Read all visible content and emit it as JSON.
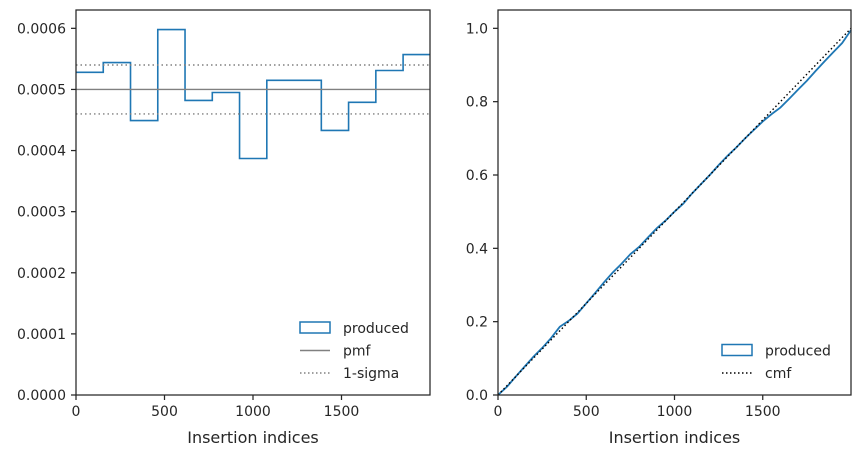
{
  "chart_data": [
    {
      "type": "histogram-step",
      "title": "",
      "xlabel": "Insertion indices",
      "ylabel": "",
      "xlim": [
        0,
        2000
      ],
      "ylim": [
        0,
        0.00063
      ],
      "xticks": [
        0,
        500,
        1000,
        1500
      ],
      "xtick_labels": [
        "0",
        "500",
        "1000",
        "1500"
      ],
      "yticks": [
        0,
        0.0001,
        0.0002,
        0.0003,
        0.0004,
        0.0005,
        0.0006
      ],
      "ytick_labels": [
        "0.0000",
        "0.0001",
        "0.0002",
        "0.0003",
        "0.0004",
        "0.0005",
        "0.0006"
      ],
      "grid": false,
      "legend_position": "lower right",
      "bin_edges": [
        0,
        154,
        308,
        462,
        616,
        770,
        924,
        1078,
        1232,
        1386,
        1540,
        1694,
        1848,
        2000
      ],
      "series": [
        {
          "name": "produced",
          "style": "step",
          "color": "#1f77b4",
          "values": [
            0.000528,
            0.000544,
            0.000449,
            0.000598,
            0.000482,
            0.000495,
            0.000387,
            0.000515,
            0.000515,
            0.000433,
            0.000479,
            0.000531,
            0.000557
          ]
        },
        {
          "name": "pmf",
          "style": "solid-hline",
          "color": "#808080",
          "value": 0.0005
        },
        {
          "name": "1-sigma",
          "style": "dotted-hline",
          "color": "#808080",
          "values": [
            0.00046,
            0.00054
          ]
        }
      ]
    },
    {
      "type": "line",
      "title": "",
      "xlabel": "Insertion indices",
      "ylabel": "",
      "xlim": [
        0,
        2000
      ],
      "ylim": [
        0,
        1.05
      ],
      "xticks": [
        0,
        500,
        1000,
        1500
      ],
      "xtick_labels": [
        "0",
        "500",
        "1000",
        "1500"
      ],
      "yticks": [
        0,
        0.2,
        0.4,
        0.6,
        0.8,
        1.0
      ],
      "ytick_labels": [
        "0.0",
        "0.2",
        "0.4",
        "0.6",
        "0.8",
        "1.0"
      ],
      "grid": false,
      "legend_position": "lower right",
      "series": [
        {
          "name": "produced",
          "color": "#1f77b4",
          "x": [
            0,
            50,
            100,
            150,
            200,
            250,
            300,
            350,
            400,
            450,
            500,
            550,
            600,
            650,
            700,
            750,
            800,
            850,
            900,
            950,
            1000,
            1050,
            1100,
            1150,
            1200,
            1250,
            1300,
            1350,
            1400,
            1450,
            1500,
            1550,
            1600,
            1650,
            1700,
            1750,
            1800,
            1850,
            1900,
            1950,
            2000
          ],
          "y": [
            0,
            0.022,
            0.05,
            0.077,
            0.104,
            0.128,
            0.155,
            0.186,
            0.202,
            0.222,
            0.25,
            0.278,
            0.307,
            0.334,
            0.358,
            0.384,
            0.404,
            0.43,
            0.455,
            0.476,
            0.5,
            0.522,
            0.55,
            0.575,
            0.6,
            0.627,
            0.652,
            0.675,
            0.7,
            0.723,
            0.746,
            0.766,
            0.784,
            0.808,
            0.833,
            0.857,
            0.884,
            0.91,
            0.935,
            0.96,
            0.995
          ]
        },
        {
          "name": "cmf",
          "style": "dotted",
          "color": "#000000",
          "x": [
            0,
            2000
          ],
          "y": [
            0,
            1.0
          ]
        }
      ]
    }
  ]
}
